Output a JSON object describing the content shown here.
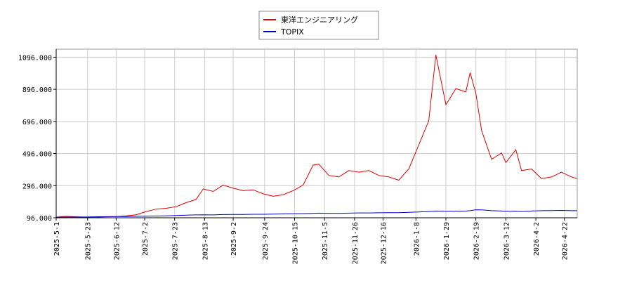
{
  "chart_data": {
    "type": "line",
    "x": [
      "2025-5-1",
      "2025-5-8",
      "2025-5-15",
      "2025-5-22",
      "2025-5-29",
      "2025-6-5",
      "2025-6-12",
      "2025-6-19",
      "2025-6-26",
      "2025-7-3",
      "2025-7-10",
      "2025-7-17",
      "2025-7-24",
      "2025-7-31",
      "2025-8-7",
      "2025-8-12",
      "2025-8-19",
      "2025-8-26",
      "2025-9-2",
      "2025-9-9",
      "2025-9-16",
      "2025-9-23",
      "2025-9-30",
      "2025-10-7",
      "2025-10-14",
      "2025-10-21",
      "2025-10-28",
      "2025-11-1",
      "2025-11-8",
      "2025-11-15",
      "2025-11-22",
      "2025-11-29",
      "2025-12-6",
      "2025-12-13",
      "2025-12-20",
      "2025-12-27",
      "2026-1-3",
      "2026-1-10",
      "2026-1-17",
      "2026-1-22",
      "2026-1-29",
      "2026-2-5",
      "2026-2-12",
      "2026-2-15",
      "2026-2-19",
      "2026-2-23",
      "2026-3-2",
      "2026-3-9",
      "2026-3-12",
      "2026-3-19",
      "2026-3-23",
      "2026-3-30",
      "2026-4-6",
      "2026-4-13",
      "2026-4-20",
      "2026-4-27",
      "2026-5-1"
    ],
    "series": [
      {
        "name": "東洋エンジニアリング",
        "color": "#e00000",
        "values": [
          100,
          105,
          102,
          100,
          100,
          102,
          104,
          108,
          115,
          135,
          150,
          155,
          165,
          190,
          210,
          276,
          260,
          300,
          280,
          265,
          270,
          245,
          230,
          240,
          265,
          300,
          424,
          430,
          360,
          350,
          390,
          380,
          390,
          360,
          350,
          330,
          400,
          550,
          700,
          1110,
          800,
          900,
          880,
          1000,
          870,
          640,
          460,
          500,
          440,
          520,
          390,
          400,
          340,
          350,
          380,
          350,
          340
        ]
      },
      {
        "name": "TOPIX",
        "color": "#0000cc",
        "values": [
          100,
          100,
          101,
          101,
          102,
          103,
          104,
          104,
          105,
          106,
          107,
          108,
          110,
          112,
          114,
          115,
          114,
          116,
          117,
          117,
          118,
          118,
          119,
          120,
          121,
          122,
          124,
          125,
          124,
          124,
          125,
          126,
          126,
          127,
          128,
          128,
          130,
          132,
          135,
          138,
          136,
          137,
          138,
          140,
          146,
          145,
          140,
          138,
          136,
          137,
          135,
          138,
          140,
          141,
          142,
          140,
          140
        ]
      }
    ],
    "xlim": [
      "2025-5-1",
      "2026-5-1"
    ],
    "xticks": [
      "2025-5-1",
      "2025-5-23",
      "2025-6-12",
      "2025-7-2",
      "2025-7-23",
      "2025-8-13",
      "2025-9-2",
      "2025-9-24",
      "2025-10-15",
      "2025-11-5",
      "2025-11-26",
      "2025-12-16",
      "2026-1-8",
      "2026-1-29",
      "2026-2-19",
      "2026-3-12",
      "2026-4-2",
      "2026-4-22"
    ],
    "ylim": [
      96,
      1146
    ],
    "yticks": [
      {
        "value": 96,
        "label": "96.000"
      },
      {
        "value": 296,
        "label": "296.000"
      },
      {
        "value": 496,
        "label": "496.000"
      },
      {
        "value": 696,
        "label": "696.000"
      },
      {
        "value": 896,
        "label": "896.000"
      },
      {
        "value": 1096,
        "label": "1096.000"
      }
    ],
    "grid": true
  }
}
